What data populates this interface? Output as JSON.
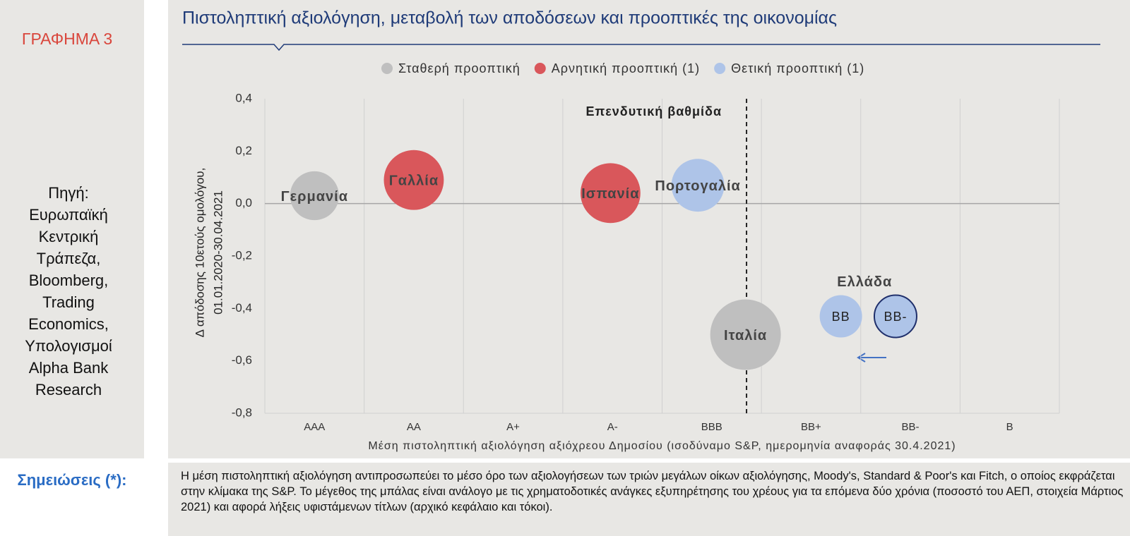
{
  "sidebar": {
    "label": "ΓΡΑΦΗΜΑ 3",
    "source": "Πηγή: Ευρωπαϊκή Κεντρική Τράπεζα, Bloomberg, Trading Economics, Υπολογισμοί Alpha Bank Research"
  },
  "notes": {
    "label": "Σημειώσεις (*):",
    "text": "Η μέση πιστοληπτική αξιολόγηση αντιπροσωπεύει το μέσο όρο των αξιολογήσεων των τριών μεγάλων οίκων αξιολόγησης, Moody's, Standard & Poor's και Fitch, ο οποίος εκφράζεται στην κλίμακα της S&P. Το μέγεθος της μπάλας είναι ανάλογο με τις χρηματοδοτικές ανάγκες εξυπηρέτησης του χρέους για τα επόμενα δύο χρόνια (ποσοστό του ΑΕΠ, στοιχεία Μάρτιος 2021) και αφορά λήξεις υφιστάμενων τίτλων (αρχικό κεφάλαιο και τόκοι)."
  },
  "chart_data": {
    "type": "bubble",
    "title": "Πιστοληπτική αξιολόγηση, μεταβολή των αποδόσεων και προοπτικές της οικονομίας",
    "xlabel": "Μέση πιστοληπτική αξιολόγηση αξιόχρεου Δημοσίου (ισοδύναμο S&P, ημερομηνία αναφοράς 30.4.2021)",
    "ylabel": [
      "Δ απόδοσης 10ετούς ομολόγου,",
      "01.01.2020-30.04.2021"
    ],
    "xlim": [
      -0.5,
      7.5
    ],
    "xticks": [
      {
        "value": 0,
        "label": "AAA"
      },
      {
        "value": 1,
        "label": "AA"
      },
      {
        "value": 2,
        "label": "A+"
      },
      {
        "value": 3,
        "label": "A-"
      },
      {
        "value": 4,
        "label": "BBB"
      },
      {
        "value": 5,
        "label": "BB+"
      },
      {
        "value": 6,
        "label": "BB-"
      },
      {
        "value": 7,
        "label": "B"
      }
    ],
    "ylim": [
      -0.8,
      0.4
    ],
    "yticks": [
      {
        "value": 0.4,
        "label": "0,4"
      },
      {
        "value": 0.2,
        "label": "0,2"
      },
      {
        "value": 0,
        "label": "0,0"
      },
      {
        "value": -0.2,
        "label": "-0,2"
      },
      {
        "value": -0.4,
        "label": "-0,4"
      },
      {
        "value": -0.6,
        "label": "-0,6"
      },
      {
        "value": -0.8,
        "label": "-0,8"
      }
    ],
    "legend": "top",
    "vline": 4.35,
    "vline_label": "Επενδυτική βαθμίδα",
    "group_label": "Ελλάδα",
    "series": [
      {
        "name": "Σταθερή προοπτική",
        "color": "#bfbfbf",
        "labels": [
          "Γερμανία",
          "Ιταλία"
        ],
        "x": [
          0,
          4.34
        ],
        "values": [
          0.03,
          -0.5
        ],
        "sizes": [
          12,
          25
        ]
      },
      {
        "name": "Αρνητική προοπτική (1)",
        "color": "#d9575b",
        "labels": [
          "Γαλλία",
          "Ισπανία"
        ],
        "x": [
          1,
          2.98
        ],
        "values": [
          0.09,
          0.04
        ],
        "sizes": [
          18,
          18
        ]
      },
      {
        "name": "Θετική προοπτική (1)",
        "color": "#aec4e8",
        "labels": [
          "Πορτογαλία",
          "BB",
          "BB-"
        ],
        "x": [
          3.86,
          5.3,
          5.85
        ],
        "values": [
          0.07,
          -0.43,
          -0.43
        ],
        "sizes": [
          14,
          9,
          9
        ],
        "edgecolors": [
          null,
          null,
          "#1f2f6b"
        ]
      }
    ]
  }
}
